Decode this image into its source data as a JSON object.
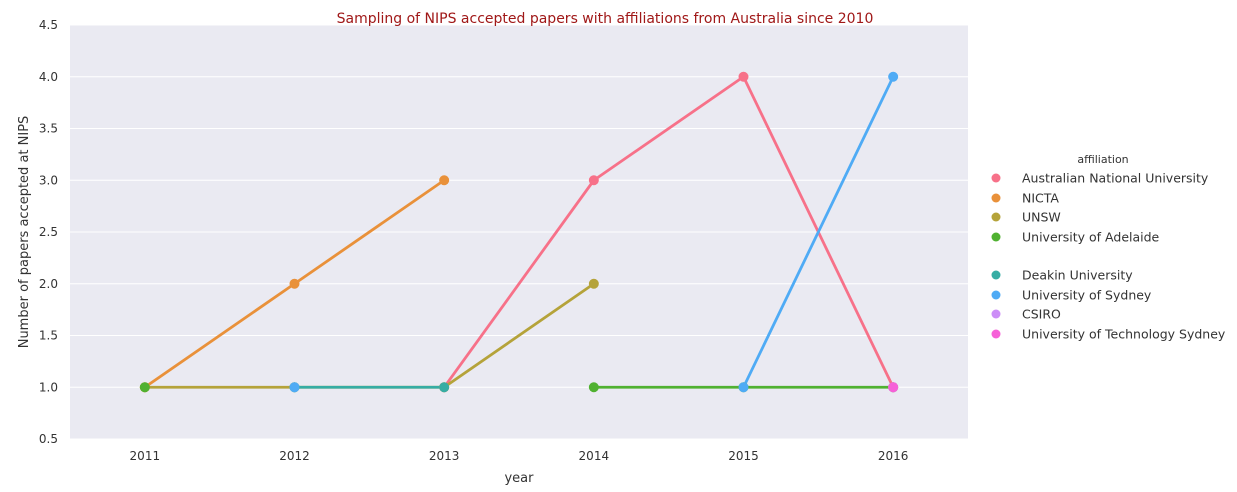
{
  "chart_data": {
    "type": "line",
    "title": "Sampling of NIPS accepted papers with affiliations from Australia since 2010",
    "title_color": "#a01818",
    "xlabel": "year",
    "ylabel": "Number of papers accepted at NIPS",
    "categories": [
      "2011",
      "2012",
      "2013",
      "2014",
      "2015",
      "2016"
    ],
    "ylim": [
      0.5,
      4.5
    ],
    "yticks": [
      "0.5",
      "1.0",
      "1.5",
      "2.0",
      "2.5",
      "3.0",
      "3.5",
      "4.0",
      "4.5"
    ],
    "grid": true,
    "background": "#eaeaf2",
    "legend_title": "affiliation",
    "legend_position": "right",
    "series": [
      {
        "name": "Australian National University",
        "color": "#f77189",
        "values": [
          null,
          null,
          1.0,
          3.0,
          4.0,
          1.0
        ]
      },
      {
        "name": "NICTA",
        "color": "#e9913a",
        "values": [
          1.0,
          2.0,
          3.0,
          null,
          null,
          null
        ]
      },
      {
        "name": "UNSW",
        "color": "#b5a33a",
        "values": [
          1.0,
          1.0,
          1.0,
          2.0,
          null,
          null
        ]
      },
      {
        "name": "University of Adelaide",
        "color": "#50b131",
        "values": [
          1.0,
          null,
          null,
          1.0,
          1.0,
          1.0
        ]
      },
      {
        "name": "Deakin University",
        "color": "#36ada4",
        "values": [
          null,
          1.0,
          1.0,
          null,
          null,
          null
        ]
      },
      {
        "name": "University of Sydney",
        "color": "#4fabf5",
        "values": [
          null,
          1.0,
          null,
          null,
          1.0,
          4.0
        ]
      },
      {
        "name": "CSIRO",
        "color": "#cc8ef7",
        "values": [
          null,
          null,
          null,
          null,
          null,
          1.0
        ]
      },
      {
        "name": "University of Technology Sydney",
        "color": "#f661d8",
        "values": [
          null,
          null,
          null,
          null,
          null,
          1.0
        ]
      }
    ]
  }
}
